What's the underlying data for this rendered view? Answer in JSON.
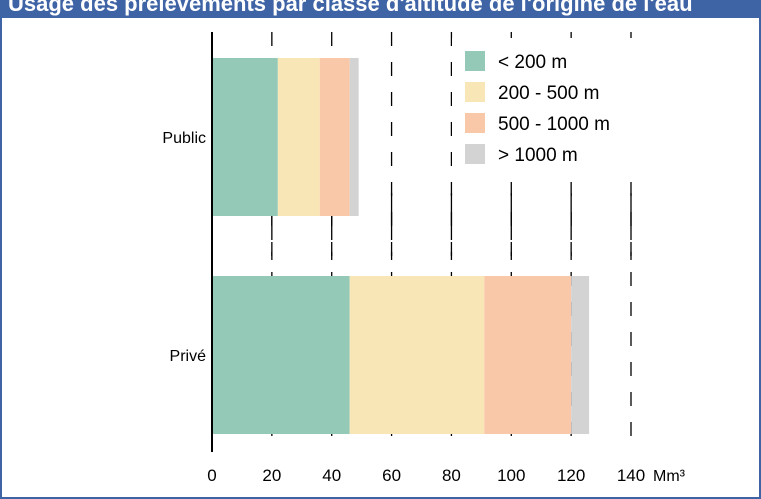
{
  "header": {
    "title": "Usage des prélèvements par classe d'altitude de l'origine de l'eau"
  },
  "chart_data": {
    "type": "bar",
    "orientation": "horizontal",
    "stacked": true,
    "categories": [
      "Public",
      "Privé"
    ],
    "series": [
      {
        "name": "< 200 m",
        "color": "#93c9b6",
        "values": [
          22,
          46
        ]
      },
      {
        "name": "200 - 500 m",
        "color": "#f9e6b6",
        "values": [
          14,
          45
        ]
      },
      {
        "name": "500 - 1000 m",
        "color": "#f9c8a8",
        "values": [
          10,
          29
        ]
      },
      {
        "name": "> 1000 m",
        "color": "#d3d3d3",
        "values": [
          3,
          6
        ]
      }
    ],
    "xlim": [
      0,
      140
    ],
    "xticks": [
      "0",
      "20",
      "40",
      "60",
      "80",
      "100",
      "120",
      "140"
    ],
    "xunit": "Mm³",
    "legend_position": "top-right",
    "grid": "vertical-dashed"
  }
}
